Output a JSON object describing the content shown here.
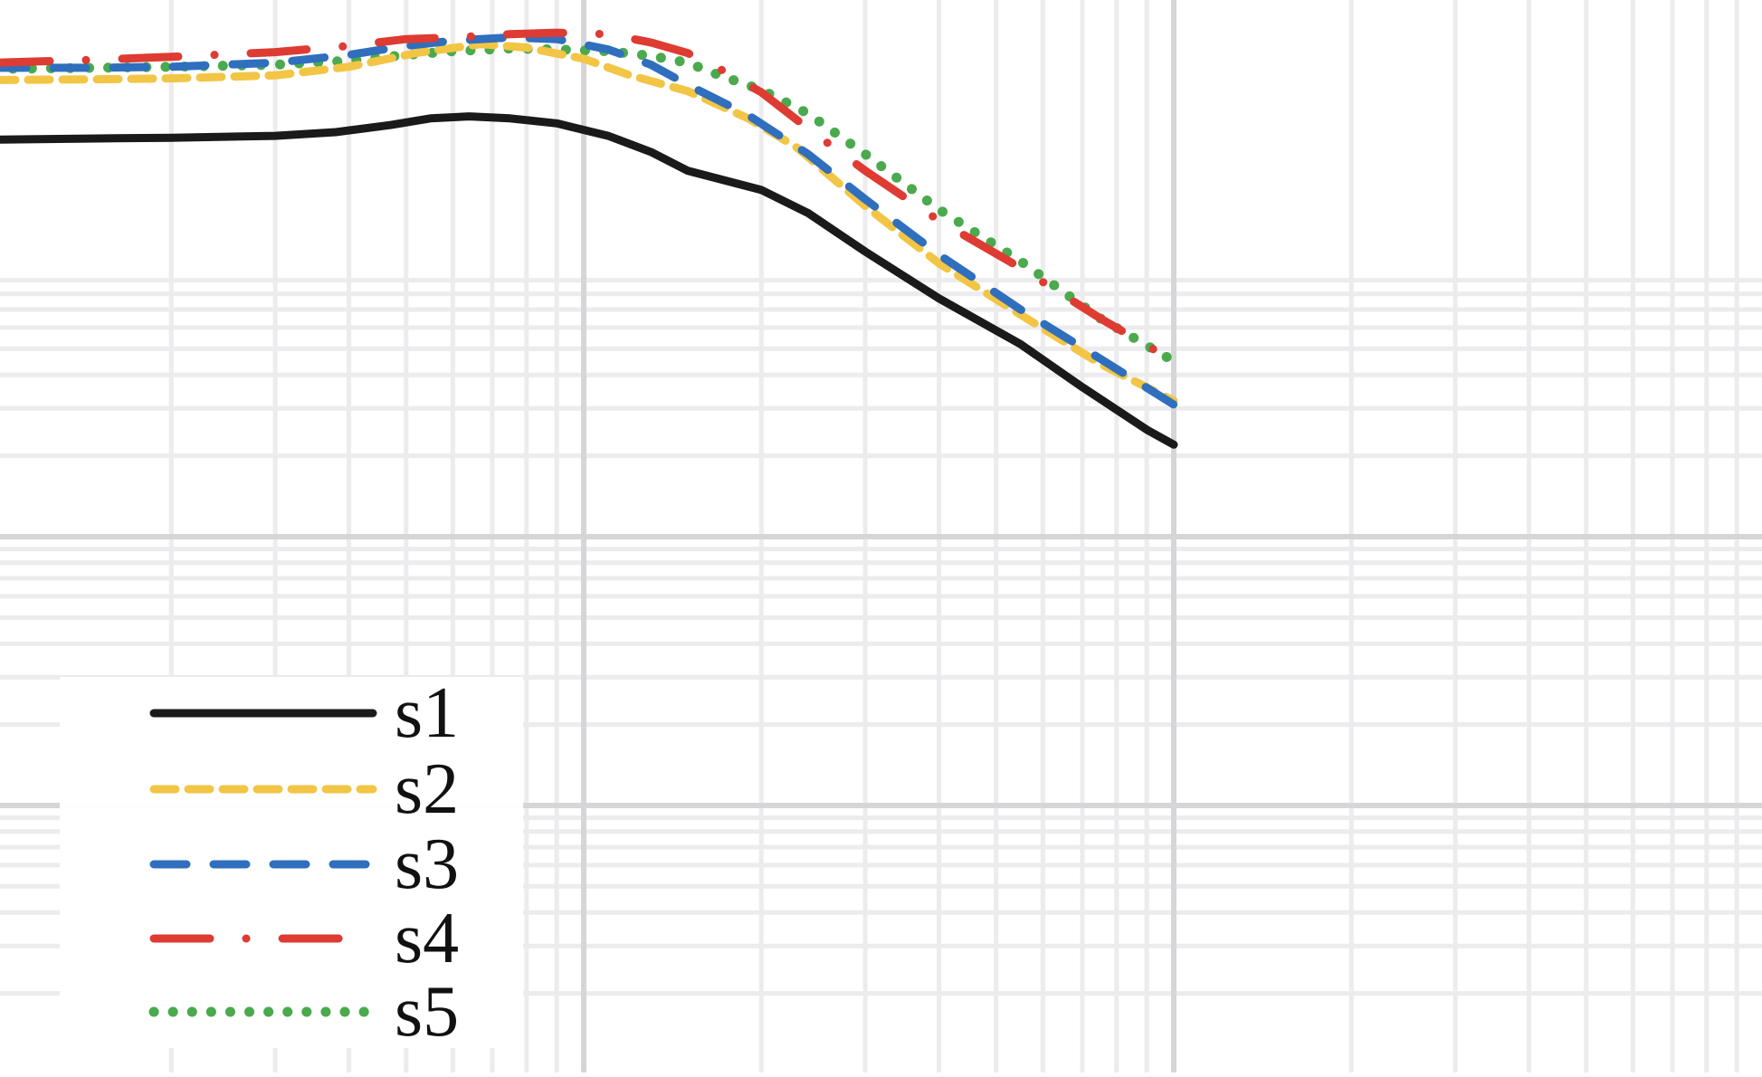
{
  "chart_data": {
    "type": "line",
    "title": "",
    "xlabel": "",
    "ylabel": "",
    "x_scale": "log",
    "y_scale": "log",
    "xlim": [
      1,
      100
    ],
    "ylim": [
      1,
      100
    ],
    "grid": true,
    "legend_position": "lower-left",
    "series": [
      {
        "name": "s1",
        "color": "#1a1a1a",
        "style": "solid",
        "x": [
          1,
          1.5,
          2,
          3,
          3.8,
          4.7,
          5.5,
          6.4,
          7.5,
          9,
          11,
          13,
          15,
          20,
          24,
          30,
          40,
          55,
          70,
          90,
          100
        ],
        "y": [
          30,
          30.3,
          30.5,
          31,
          32,
          34,
          36,
          36.6,
          36,
          34.5,
          31,
          27,
          23,
          19.5,
          16,
          11.5,
          7.7,
          5.2,
          3.6,
          2.5,
          2.2
        ]
      },
      {
        "name": "s2",
        "color": "#f2c544",
        "style": "dashed",
        "x": [
          1,
          1.5,
          2,
          3,
          4,
          5.2,
          6.7,
          8,
          10,
          12,
          15,
          19,
          23,
          30,
          40,
          55,
          75,
          100
        ],
        "y": [
          50,
          50.3,
          50.7,
          52,
          56,
          63,
          68,
          66,
          60,
          52,
          45.5,
          36,
          28,
          17,
          10.4,
          6.7,
          4.4,
          3.2
        ]
      },
      {
        "name": "s3",
        "color": "#2f6fbd",
        "style": "dashed-long",
        "x": [
          1,
          1.5,
          2,
          3,
          4,
          5,
          6,
          7.5,
          9,
          11,
          13,
          15,
          19,
          24,
          30,
          40,
          55,
          75,
          100
        ],
        "y": [
          55.5,
          55.5,
          56,
          58,
          62,
          67,
          70,
          72,
          71,
          65,
          57,
          48,
          37,
          26.5,
          18,
          11.2,
          7,
          4.6,
          3.1
        ]
      },
      {
        "name": "s4",
        "color": "#de3b32",
        "style": "dash-dot",
        "x": [
          1,
          1.5,
          2,
          3,
          4,
          5,
          6,
          7.5,
          9,
          11,
          13,
          15,
          17,
          20,
          24,
          30,
          40,
          55,
          75,
          100
        ],
        "y": [
          58,
          59.5,
          61,
          63.5,
          67,
          71,
          72,
          74,
          75,
          74,
          69,
          63,
          55,
          45,
          33,
          23,
          15,
          10,
          6.5,
          4.5
        ]
      },
      {
        "name": "s5",
        "color": "#4aaa4d",
        "style": "dotted",
        "x": [
          1,
          1.5,
          2,
          3,
          4,
          5,
          6,
          7.5,
          9,
          11,
          13,
          15,
          17,
          20,
          24,
          30,
          40,
          55,
          75,
          100
        ],
        "y": [
          55,
          55.5,
          56,
          57,
          59,
          62,
          64,
          65.5,
          65,
          64,
          61.5,
          58,
          52,
          46,
          37.5,
          26.5,
          16.5,
          10.6,
          6.5,
          4.5
        ]
      }
    ]
  }
}
